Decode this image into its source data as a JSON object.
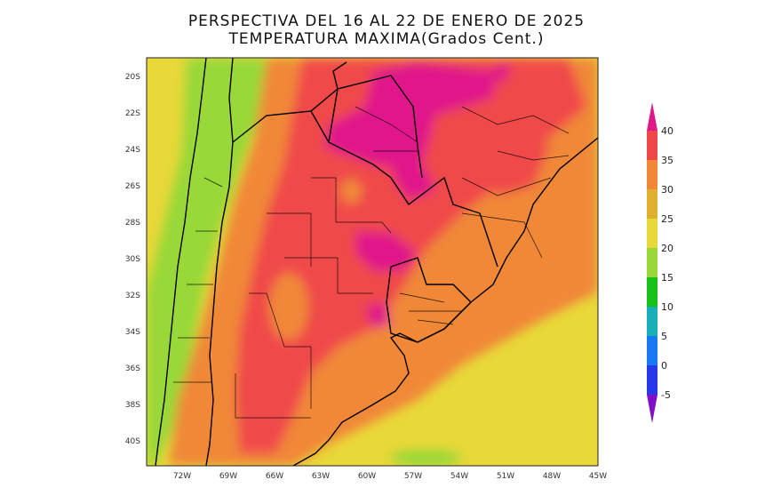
{
  "header": {
    "title_line1": "PERSPECTIVA DEL 16 AL 22 DE ENERO DE 2025",
    "title_line2": "TEMPERATURA MAXIMA(Grados Cent.)"
  },
  "map": {
    "region": "Southern South America (Argentina, Uruguay, Paraguay, Chile, southern Brazil)",
    "lat_labels": [
      "20S",
      "22S",
      "24S",
      "26S",
      "28S",
      "30S",
      "32S",
      "34S",
      "36S",
      "38S",
      "40S"
    ],
    "lon_labels": [
      "72W",
      "69W",
      "66W",
      "63W",
      "60W",
      "57W",
      "54W",
      "51W",
      "48W",
      "45W"
    ],
    "background_color": "#e8d838"
  },
  "colorbar": {
    "labels": [
      "40",
      "35",
      "30",
      "25",
      "20",
      "15",
      "10",
      "5",
      "0",
      "-5"
    ],
    "colors": [
      "#e0188a",
      "#f04848",
      "#f08838",
      "#e0b030",
      "#e8d838",
      "#98d838",
      "#18c018",
      "#18b0b8",
      "#1878f0",
      "#2838e8",
      "#8010c8"
    ]
  }
}
